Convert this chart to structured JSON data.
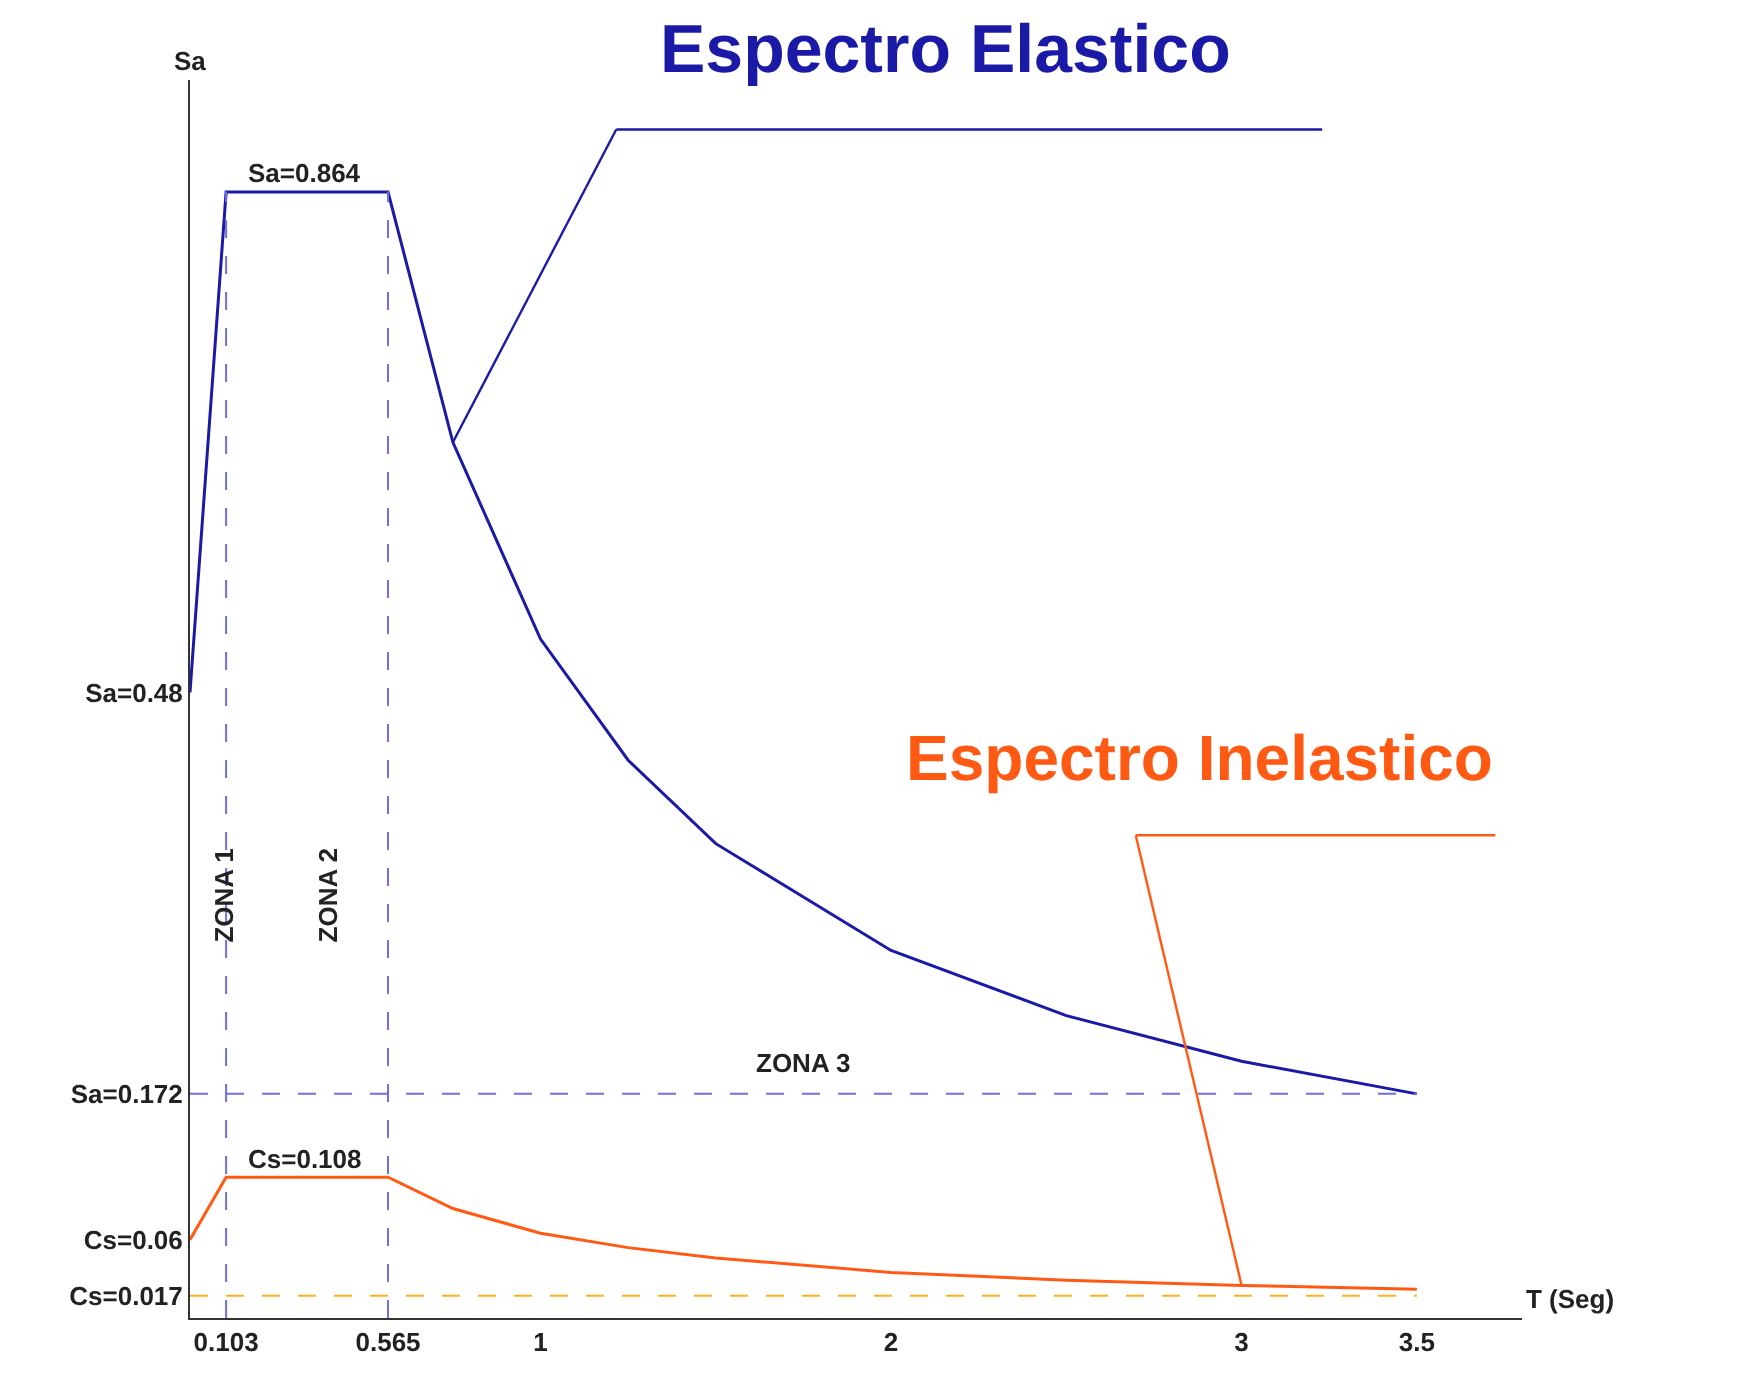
{
  "chart_data": {
    "type": "line",
    "xlabel": "T (Seg)",
    "ylabel": "Sa",
    "x": [
      0,
      0.103,
      0.565,
      0.75,
      1,
      1.25,
      1.5,
      2,
      2.5,
      3,
      3.5
    ],
    "series": [
      {
        "name": "Espectro Elastico",
        "color": "#1a1aa6",
        "values": [
          0.48,
          0.864,
          0.864,
          0.672,
          0.521,
          0.428,
          0.364,
          0.282,
          0.232,
          0.197,
          0.172
        ]
      },
      {
        "name": "Espectro Inelastico",
        "color": "#ff5a14",
        "values": [
          0.06,
          0.108,
          0.108,
          0.084,
          0.065,
          0.054,
          0.046,
          0.035,
          0.029,
          0.025,
          0.022
        ]
      }
    ],
    "xlim": [
      0,
      3.8
    ],
    "ylim": [
      0,
      0.95
    ],
    "xticks": [
      0.103,
      0.565,
      1,
      2,
      3,
      3.5
    ],
    "yticks": [
      {
        "value": 0.017,
        "label": "Cs=0.017"
      },
      {
        "value": 0.06,
        "label": "Cs=0.06"
      },
      {
        "value": 0.172,
        "label": "Sa=0.172"
      },
      {
        "value": 0.48,
        "label": "Sa=0.48"
      }
    ],
    "ref_lines": [
      {
        "axis": "x",
        "value": 0.103,
        "color": "#6f6fe0",
        "line_style": "dashed"
      },
      {
        "axis": "x",
        "value": 0.565,
        "color": "#6f6fe0",
        "line_style": "dashed"
      },
      {
        "axis": "y",
        "value": 0.172,
        "color": "#6f6fe0",
        "line_style": "dashed"
      },
      {
        "axis": "y",
        "value": 0.017,
        "color": "#ffb020",
        "line_style": "dashed"
      }
    ],
    "annotations": [
      {
        "text": "Sa=0.864",
        "x": 0.33,
        "y": 0.864
      },
      {
        "text": "Cs=0.108",
        "x": 0.33,
        "y": 0.108
      },
      "ZONA 1",
      "ZONA 2",
      "ZONA 3"
    ],
    "marker": "none",
    "line_style": "solid"
  }
}
